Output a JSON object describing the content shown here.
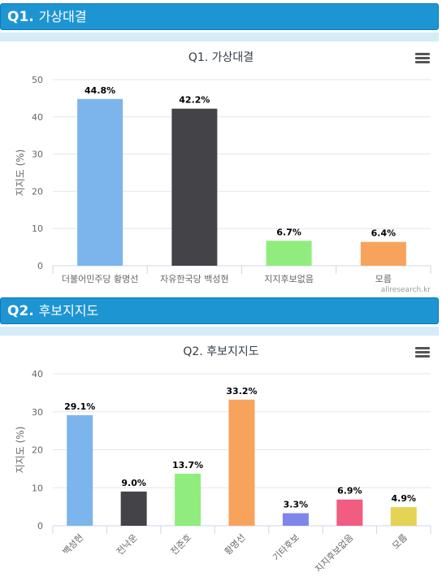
{
  "sections": [
    {
      "heading_q": "Q1.",
      "heading_text": "가상대결",
      "menu_icon": "hamburger-menu-icon",
      "credit": "allresearch.kr",
      "chart_data": {
        "type": "bar",
        "title": "Q1. 가상대결",
        "ylabel": "지지도 (%)",
        "xlabel": "",
        "ylim": [
          0,
          50
        ],
        "yticks": [
          "0",
          "10",
          "20",
          "30",
          "40",
          "50"
        ],
        "grid": true,
        "categories": [
          "더불어민주당 황명선",
          "자유한국당 백성현",
          "지지후보없음",
          "모름"
        ],
        "values": [
          44.8,
          42.2,
          6.7,
          6.4
        ],
        "data_labels": [
          "44.8%",
          "42.2%",
          "6.7%",
          "6.4%"
        ],
        "colors": [
          "#7cb5ec",
          "#434348",
          "#90ed7d",
          "#f7a35c"
        ]
      }
    },
    {
      "heading_q": "Q2.",
      "heading_text": "후보지지도",
      "menu_icon": "hamburger-menu-icon",
      "chart_data": {
        "type": "bar",
        "title": "Q2. 후보지지도",
        "ylabel": "지지도 (%)",
        "xlabel": "",
        "ylim": [
          0,
          40
        ],
        "yticks": [
          "0",
          "10",
          "20",
          "30",
          "40"
        ],
        "grid": true,
        "categories": [
          "백성현",
          "전낙운",
          "전준호",
          "황명선",
          "기타후보",
          "지지후보없음",
          "모름"
        ],
        "values": [
          29.1,
          9.0,
          13.7,
          33.2,
          3.3,
          6.9,
          4.9
        ],
        "data_labels": [
          "29.1%",
          "9.0%",
          "13.7%",
          "33.2%",
          "3.3%",
          "6.9%",
          "4.9%"
        ],
        "colors": [
          "#7cb5ec",
          "#434348",
          "#90ed7d",
          "#f7a35c",
          "#8085e9",
          "#f15c80",
          "#e4d354"
        ]
      }
    }
  ]
}
